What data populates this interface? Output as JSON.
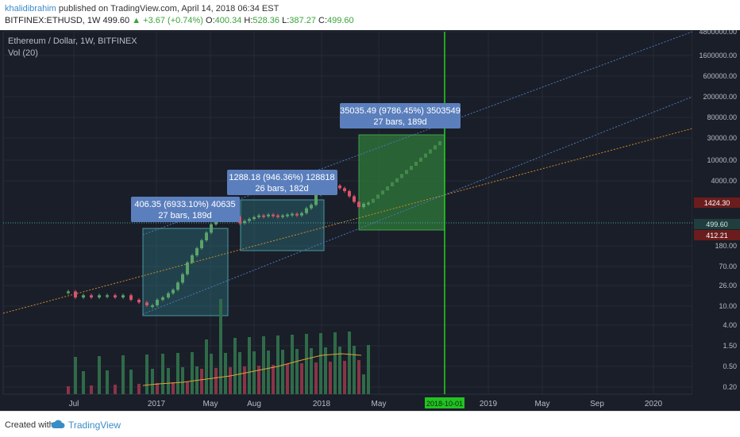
{
  "header": {
    "username": "khalidibrahim",
    "published_text": "published on TradingView.com, April 14, 2018 06:34 EST",
    "symbol": "BITFINEX:ETHUSD, 1W",
    "last": "499.60",
    "change": "+3.67 (+0.74%)",
    "o_label": "O:",
    "o_value": "400.34",
    "h_label": "H:",
    "h_value": "528.36",
    "l_label": "L:",
    "l_value": "387.27",
    "c_label": "C:",
    "c_value": "499.60"
  },
  "chart": {
    "title": "Ethereum / Dollar, 1W, BITFINEX",
    "vol_label": "Vol (20)",
    "y_ticks": [
      "4800000.00",
      "1600000.00",
      "600000.00",
      "200000.00",
      "80000.00",
      "30000.00",
      "10000.00",
      "4000.00",
      "180.00",
      "70.00",
      "26.00",
      "10.00",
      "4.00",
      "1.50",
      "0.50",
      "0.20"
    ],
    "x_ticks": [
      "Jul",
      "2017",
      "May",
      "Aug",
      "2018",
      "May",
      "2019",
      "May",
      "Sep",
      "2020"
    ],
    "price_tags": {
      "p1424": "1424.30",
      "p499": "499.60",
      "p412": "412.21"
    },
    "date_tag": "2018-10-01",
    "measures": [
      {
        "line1": "406.35 (6933.10%) 40635",
        "line2": "27 bars, 189d"
      },
      {
        "line1": "1288.18 (946.36%) 128818",
        "line2": "26 bars, 182d"
      },
      {
        "line1": "35035.49 (9786.45%) 3503549",
        "line2": "27 bars, 189d"
      }
    ],
    "colors": {
      "bg": "#1a1e28",
      "up": "#5aa36a",
      "down": "#d9536a",
      "projection": "#2f7a3a",
      "vline": "#22d422"
    }
  },
  "chart_data": {
    "type": "candlestick",
    "title": "Ethereum / Dollar, 1W, BITFINEX",
    "y_scale": "log",
    "ylim": [
      0.1,
      4800000
    ],
    "x_range": [
      "2016-06",
      "2020-03"
    ],
    "ohlc_last": {
      "open": 400.34,
      "high": 528.36,
      "low": 387.27,
      "close": 499.6
    },
    "approx_closes": [
      {
        "date": "2016-06",
        "price": 12
      },
      {
        "date": "2016-09",
        "price": 12
      },
      {
        "date": "2016-12",
        "price": 8
      },
      {
        "date": "2017-03",
        "price": 40
      },
      {
        "date": "2017-06",
        "price": 300
      },
      {
        "date": "2017-08",
        "price": 300
      },
      {
        "date": "2017-11",
        "price": 450
      },
      {
        "date": "2018-01",
        "price": 1300
      },
      {
        "date": "2018-03",
        "price": 450
      },
      {
        "date": "2018-04",
        "price": 499.6
      }
    ],
    "projection_target": {
      "date": "2018-10-01",
      "price": 35035.49
    },
    "measures": [
      {
        "change": 406.35,
        "percent": 6933.1,
        "bars": 27,
        "days": 189
      },
      {
        "change": 1288.18,
        "percent": 946.36,
        "bars": 26,
        "days": 182
      },
      {
        "change": 35035.49,
        "percent": 9786.45,
        "bars": 27,
        "days": 189
      }
    ],
    "legend": "top-left",
    "grid": true
  }
}
